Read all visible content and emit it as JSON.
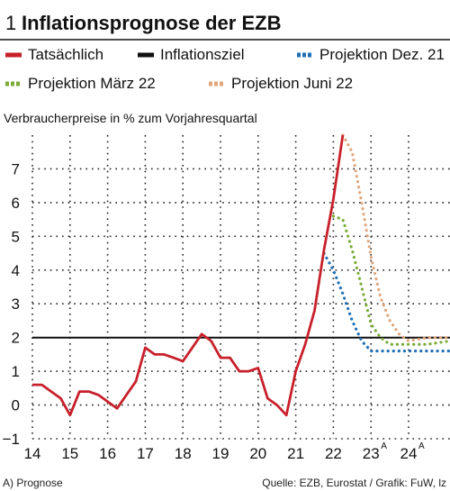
{
  "figure": {
    "number": "1",
    "title": "Inflationsprognose der EZB"
  },
  "chart_data": {
    "type": "line",
    "title": "Inflationsprognose der EZB",
    "ylabel": "Verbraucherpreise in % zum Vorjahresquartal",
    "xlabel": "",
    "ylim": [
      -1,
      8
    ],
    "xlim": [
      14,
      25.1
    ],
    "y_ticks": [
      "−1",
      "0",
      "1",
      "2",
      "3",
      "4",
      "5",
      "6",
      "7"
    ],
    "x_ticks": [
      {
        "value": 14,
        "label": "14",
        "forecast": false
      },
      {
        "value": 15,
        "label": "15",
        "forecast": false
      },
      {
        "value": 16,
        "label": "16",
        "forecast": false
      },
      {
        "value": 17,
        "label": "17",
        "forecast": false
      },
      {
        "value": 18,
        "label": "18",
        "forecast": false
      },
      {
        "value": 19,
        "label": "19",
        "forecast": false
      },
      {
        "value": 20,
        "label": "20",
        "forecast": false
      },
      {
        "value": 21,
        "label": "21",
        "forecast": false
      },
      {
        "value": 22,
        "label": "22",
        "forecast": false
      },
      {
        "value": 23,
        "label": "23",
        "forecast": true
      },
      {
        "value": 24,
        "label": "24",
        "forecast": true
      }
    ],
    "forecast_marker": "A",
    "grid": "dotted",
    "legend_position": "top",
    "series": [
      {
        "name": "Tatsächlich",
        "color": "#c8202b",
        "style": "solid",
        "points": [
          [
            14,
            0.6
          ],
          [
            14.25,
            0.6
          ],
          [
            14.5,
            0.4
          ],
          [
            14.75,
            0.2
          ],
          [
            15,
            -0.3
          ],
          [
            15.25,
            0.4
          ],
          [
            15.5,
            0.4
          ],
          [
            15.75,
            0.3
          ],
          [
            16,
            0.1
          ],
          [
            16.25,
            -0.1
          ],
          [
            16.5,
            0.3
          ],
          [
            16.75,
            0.7
          ],
          [
            17,
            1.7
          ],
          [
            17.25,
            1.5
          ],
          [
            17.5,
            1.5
          ],
          [
            17.75,
            1.4
          ],
          [
            18,
            1.3
          ],
          [
            18.25,
            1.7
          ],
          [
            18.5,
            2.1
          ],
          [
            18.75,
            1.9
          ],
          [
            19,
            1.4
          ],
          [
            19.25,
            1.4
          ],
          [
            19.5,
            1.0
          ],
          [
            19.75,
            1.0
          ],
          [
            20,
            1.1
          ],
          [
            20.25,
            0.2
          ],
          [
            20.5,
            0.0
          ],
          [
            20.75,
            -0.3
          ],
          [
            21,
            1.0
          ],
          [
            21.25,
            1.8
          ],
          [
            21.5,
            2.8
          ],
          [
            21.75,
            4.6
          ],
          [
            22,
            6.1
          ],
          [
            22.25,
            8.0
          ]
        ]
      },
      {
        "name": "Inflationsziel",
        "color": "#111111",
        "style": "solid",
        "points": [
          [
            14,
            2
          ],
          [
            25.1,
            2
          ]
        ]
      },
      {
        "name": "Projektion Dez. 21",
        "color": "#1f6fb5",
        "style": "dotted",
        "points": [
          [
            21.75,
            4.5
          ],
          [
            22,
            4.0
          ],
          [
            22.25,
            3.3
          ],
          [
            22.5,
            2.5
          ],
          [
            22.75,
            1.9
          ],
          [
            23,
            1.6
          ],
          [
            23.5,
            1.6
          ],
          [
            24,
            1.6
          ],
          [
            24.5,
            1.6
          ],
          [
            25.1,
            1.6
          ]
        ]
      },
      {
        "name": "Projektion März 22",
        "color": "#7bab3a",
        "style": "dotted",
        "points": [
          [
            22,
            5.6
          ],
          [
            22.25,
            5.5
          ],
          [
            22.5,
            4.6
          ],
          [
            22.75,
            3.5
          ],
          [
            23,
            2.4
          ],
          [
            23.25,
            2.0
          ],
          [
            23.5,
            1.8
          ],
          [
            24,
            1.8
          ],
          [
            24.5,
            1.8
          ],
          [
            25.1,
            1.9
          ]
        ]
      },
      {
        "name": "Projektion Juni 22",
        "color": "#e0a57a",
        "style": "dotted",
        "points": [
          [
            22.25,
            8.0
          ],
          [
            22.5,
            7.5
          ],
          [
            22.75,
            6.0
          ],
          [
            23,
            4.4
          ],
          [
            23.25,
            3.2
          ],
          [
            23.5,
            2.5
          ],
          [
            23.75,
            2.1
          ],
          [
            24,
            1.9
          ],
          [
            24.5,
            2.0
          ],
          [
            25.1,
            2.0
          ]
        ]
      }
    ]
  },
  "legend": [
    {
      "label": "Tatsächlich",
      "color": "#c8202b",
      "dotted": false
    },
    {
      "label": "Inflationsziel",
      "color": "#111111",
      "dotted": false
    },
    {
      "label": "Projektion Dez. 21",
      "color": "#1f6fb5",
      "dotted": true
    },
    {
      "label": "Projektion März 22",
      "color": "#7bab3a",
      "dotted": true
    },
    {
      "label": "Projektion Juni 22",
      "color": "#e0a57a",
      "dotted": true
    }
  ],
  "footer": {
    "note": "A) Prognose",
    "source": "Quelle: EZB, Eurostat / Grafik: FuW, lz"
  }
}
